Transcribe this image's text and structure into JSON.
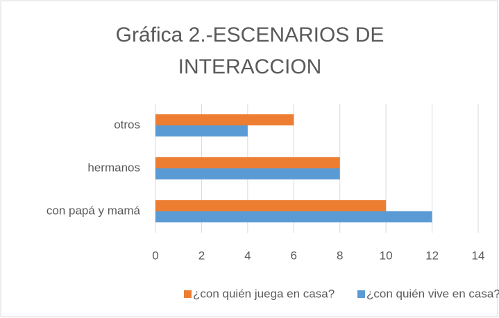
{
  "chart_data": {
    "type": "barh",
    "title": "Gráfica 2.-ESCENARIOS DE INTERACCION",
    "categories": [
      "con papá y mamá",
      "hermanos",
      "otros"
    ],
    "series": [
      {
        "name": "¿con quién juega en casa?",
        "color": "#ed7d31",
        "values": [
          10,
          8,
          6
        ]
      },
      {
        "name": "¿con quién vive en casa?",
        "color": "#5b9bd5",
        "values": [
          12,
          8,
          4
        ]
      }
    ],
    "xlim": [
      0,
      14
    ],
    "xticks": [
      0,
      2,
      4,
      6,
      8,
      10,
      12,
      14
    ],
    "grid": true,
    "legend": "bottom"
  }
}
